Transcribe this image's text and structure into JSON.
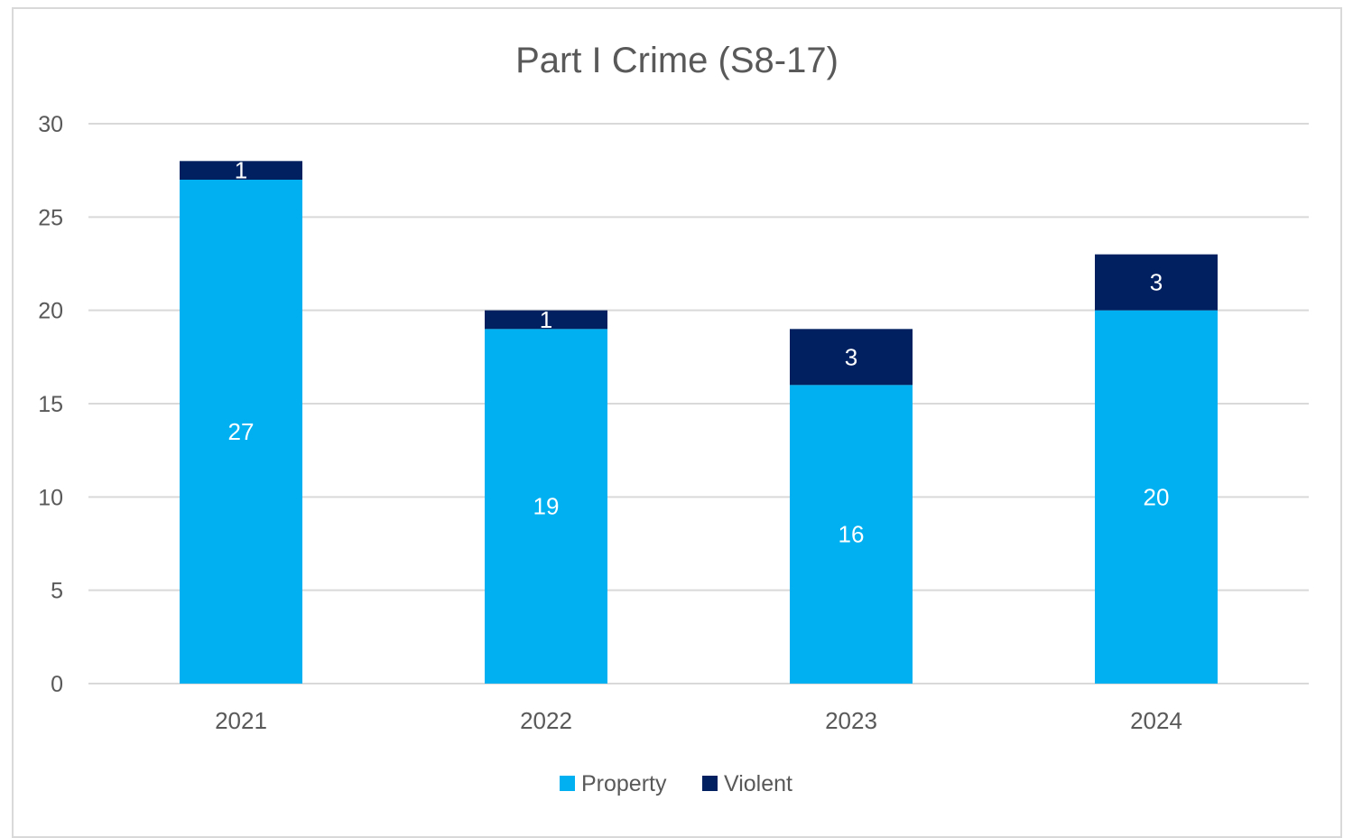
{
  "chart_data": {
    "type": "bar",
    "stacked": true,
    "title": "Part I Crime (S8-17)",
    "xlabel": "",
    "ylabel": "",
    "categories": [
      "2021",
      "2022",
      "2023",
      "2024"
    ],
    "series": [
      {
        "name": "Property",
        "values": [
          27,
          19,
          16,
          20
        ],
        "color": "#00b0f0"
      },
      {
        "name": "Violent",
        "values": [
          1,
          1,
          3,
          3
        ],
        "color": "#002060"
      }
    ],
    "ylim": [
      0,
      30
    ],
    "yticks": [
      0,
      5,
      10,
      15,
      20,
      25,
      30
    ],
    "grid": true,
    "legend_position": "bottom",
    "data_labels": true
  }
}
